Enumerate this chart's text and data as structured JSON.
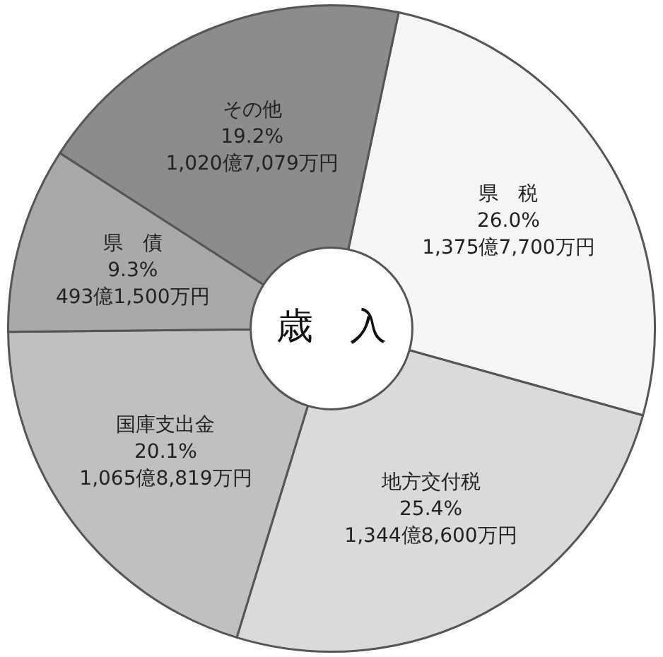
{
  "chart_data": {
    "type": "donut",
    "title": "歳　入",
    "categories": [
      "県　税",
      "地方交付税",
      "国庫支出金",
      "県　債",
      "その他"
    ],
    "values": [
      26.0,
      25.4,
      20.1,
      9.3,
      19.2
    ],
    "colors": [
      "#f5f5f3",
      "#dadada",
      "#c0c0c0",
      "#a9a9a9",
      "#8c8c8c"
    ],
    "value_labels": [
      "26.0%\n1,375億7,700万円",
      "25.4%\n1,344億8,600万円",
      "20.1%\n1,065億8,819万円",
      "9.3%\n493億1,500万円",
      "19.2%\n1,020億7,079万円"
    ],
    "legend": false
  }
}
